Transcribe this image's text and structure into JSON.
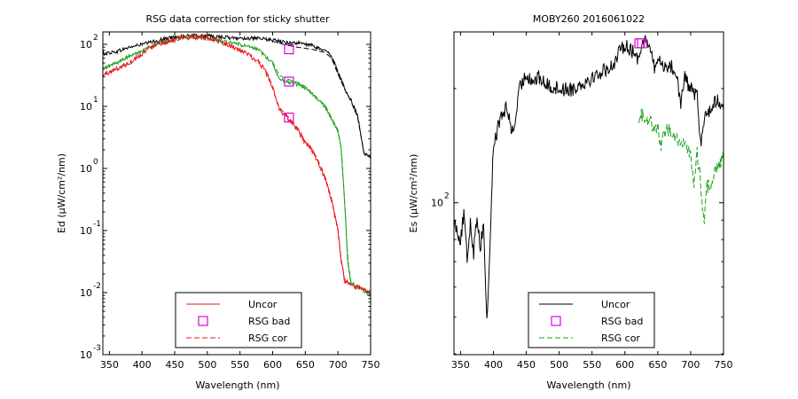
{
  "chart_data": [
    {
      "type": "line",
      "title": "RSG data correction for sticky shutter",
      "xlabel": "Wavelength (nm)",
      "ylabel": "Ed (µW/cm²/nm)",
      "xlim": [
        340,
        750
      ],
      "ylim_log10": [
        -3,
        2.2
      ],
      "y_scale": "log",
      "grid": false,
      "legend_position": "bottom-center",
      "x_ticks": [
        350,
        400,
        450,
        500,
        550,
        600,
        650,
        700,
        750
      ],
      "y_ticks": [
        {
          "base": "10",
          "exp": "2",
          "log10": 2
        },
        {
          "base": "10",
          "exp": "1",
          "log10": 1
        },
        {
          "base": "10",
          "exp": "0",
          "log10": 0
        },
        {
          "base": "10",
          "exp": "-1",
          "log10": -1
        },
        {
          "base": "10",
          "exp": "-2",
          "log10": -2
        },
        {
          "base": "10",
          "exp": "-3",
          "log10": -3
        }
      ],
      "legend": [
        {
          "label": "Uncor",
          "style": "solid",
          "color": "#e8131a"
        },
        {
          "label": "RSG bad",
          "style": "square",
          "color": "#e000e0"
        },
        {
          "label": "RSG cor",
          "style": "dashed",
          "color": "#e8131a"
        }
      ],
      "series": [
        {
          "name": "Uncor",
          "color": "#000000",
          "style": "solid",
          "noise": 0.03,
          "x": [
            340,
            360,
            380,
            400,
            420,
            440,
            460,
            480,
            500,
            520,
            540,
            560,
            580,
            600,
            620,
            640,
            660,
            680,
            690,
            700,
            710,
            720,
            730,
            740,
            750
          ],
          "log10y": [
            1.85,
            1.88,
            1.95,
            2.0,
            2.05,
            2.1,
            2.13,
            2.14,
            2.13,
            2.12,
            2.1,
            2.1,
            2.09,
            2.07,
            2.03,
            2.02,
            1.98,
            1.9,
            1.82,
            1.55,
            1.3,
            1.1,
            0.85,
            0.25,
            0.18
          ]
        },
        {
          "name": "RSG cor",
          "color": "#000000",
          "style": "dashed",
          "noise": 0.0,
          "x": [
            600,
            620,
            640,
            660,
            680,
            690,
            700,
            710,
            720,
            730,
            740,
            750
          ],
          "log10y": [
            2.05,
            1.99,
            1.95,
            1.92,
            1.87,
            1.78,
            1.52,
            1.28,
            1.08,
            0.83,
            0.24,
            0.17
          ]
        },
        {
          "name": "Uncor",
          "color": "#1aa01a",
          "style": "solid",
          "noise": 0.03,
          "x": [
            340,
            360,
            380,
            400,
            420,
            440,
            460,
            480,
            500,
            520,
            540,
            560,
            580,
            600,
            610,
            620,
            640,
            650,
            660,
            670,
            680,
            690,
            700,
            705,
            710,
            715,
            720,
            730,
            740,
            750
          ],
          "log10y": [
            1.6,
            1.7,
            1.8,
            1.9,
            2.0,
            2.05,
            2.1,
            2.12,
            2.1,
            2.05,
            2.02,
            1.97,
            1.9,
            1.7,
            1.45,
            1.4,
            1.35,
            1.3,
            1.2,
            1.1,
            1.0,
            0.8,
            0.6,
            0.3,
            -0.5,
            -1.5,
            -1.85,
            -1.9,
            -1.98,
            -2.05
          ]
        },
        {
          "name": "RSG cor",
          "color": "#1aa01a",
          "style": "dashed",
          "noise": 0.0,
          "x": [
            600,
            610,
            620,
            640,
            650,
            660,
            670,
            680,
            690,
            700,
            705,
            710,
            715,
            720
          ],
          "log10y": [
            1.72,
            1.5,
            1.45,
            1.38,
            1.32,
            1.22,
            1.12,
            1.02,
            0.82,
            0.62,
            0.32,
            -0.48,
            -1.48,
            -1.83
          ]
        },
        {
          "name": "Uncor",
          "color": "#e8131a",
          "style": "solid",
          "noise": 0.04,
          "x": [
            340,
            360,
            380,
            400,
            420,
            440,
            460,
            480,
            500,
            520,
            540,
            560,
            580,
            590,
            600,
            605,
            610,
            620,
            640,
            650,
            660,
            670,
            680,
            690,
            700,
            705,
            710,
            720,
            730,
            740,
            750
          ],
          "log10y": [
            1.5,
            1.6,
            1.7,
            1.85,
            2.0,
            2.05,
            2.1,
            2.12,
            2.1,
            2.05,
            1.95,
            1.85,
            1.7,
            1.55,
            1.3,
            1.1,
            0.95,
            0.85,
            0.6,
            0.4,
            0.3,
            0.1,
            -0.15,
            -0.5,
            -1.0,
            -1.5,
            -1.8,
            -1.9,
            -1.92,
            -1.95,
            -2.0
          ]
        },
        {
          "name": "RSG cor",
          "color": "#e8131a",
          "style": "dashed",
          "noise": 0.0,
          "x": [
            590,
            600,
            605,
            610,
            620,
            640,
            650,
            660,
            670,
            680,
            690,
            700,
            705,
            710,
            720
          ],
          "log10y": [
            1.57,
            1.32,
            1.12,
            0.98,
            0.88,
            0.63,
            0.43,
            0.32,
            0.12,
            -0.13,
            -0.48,
            -0.98,
            -1.48,
            -1.78,
            -1.88
          ]
        }
      ],
      "rsg_bad_points": [
        {
          "x": 625,
          "log10y": 1.92,
          "color": "#e000e0"
        },
        {
          "x": 625,
          "log10y": 1.4,
          "color": "#e000e0"
        },
        {
          "x": 625,
          "log10y": 0.82,
          "color": "#e000e0"
        }
      ]
    },
    {
      "type": "line",
      "title": "MOBY260  2016061022",
      "xlabel": "Wavelength (nm)",
      "ylabel": "Es (µW/cm²/nm)",
      "xlim": [
        340,
        750
      ],
      "ylim_log10": [
        1.6,
        2.45
      ],
      "y_scale": "log",
      "grid": false,
      "legend_position": "bottom-center",
      "x_ticks": [
        350,
        400,
        450,
        500,
        550,
        600,
        650,
        700,
        750
      ],
      "y_ticks": [
        {
          "base": "10",
          "exp": "2",
          "log10": 2
        }
      ],
      "legend": [
        {
          "label": "Uncor",
          "style": "solid",
          "color": "#000000"
        },
        {
          "label": "RSG bad",
          "style": "square",
          "color": "#e000e0"
        },
        {
          "label": "RSG cor",
          "style": "dashed",
          "color": "#1aa01a"
        }
      ],
      "series": [
        {
          "name": "Uncor",
          "color": "#000000",
          "style": "solid",
          "noise": 0.02,
          "x": [
            340,
            345,
            350,
            355,
            360,
            365,
            370,
            375,
            380,
            385,
            390,
            395,
            400,
            410,
            420,
            430,
            440,
            450,
            460,
            470,
            480,
            500,
            520,
            540,
            560,
            580,
            600,
            610,
            620,
            625,
            630,
            640,
            645,
            650,
            660,
            670,
            680,
            685,
            690,
            700,
            710,
            715,
            720,
            730,
            740,
            750
          ],
          "log10y": [
            1.95,
            1.93,
            1.9,
            1.97,
            1.85,
            1.95,
            1.87,
            1.97,
            1.88,
            1.95,
            1.68,
            1.9,
            2.15,
            2.22,
            2.25,
            2.18,
            2.3,
            2.34,
            2.32,
            2.33,
            2.31,
            2.3,
            2.3,
            2.32,
            2.34,
            2.36,
            2.42,
            2.4,
            2.38,
            2.42,
            2.43,
            2.4,
            2.35,
            2.38,
            2.36,
            2.36,
            2.33,
            2.25,
            2.33,
            2.3,
            2.28,
            2.15,
            2.22,
            2.25,
            2.27,
            2.26
          ]
        },
        {
          "name": "RSG cor",
          "color": "#1aa01a",
          "style": "dashed",
          "noise": 0.02,
          "x": [
            620,
            630,
            640,
            650,
            655,
            660,
            670,
            680,
            690,
            700,
            705,
            710,
            715,
            720,
            725,
            730,
            740,
            750
          ],
          "log10y": [
            2.23,
            2.23,
            2.21,
            2.2,
            2.14,
            2.19,
            2.19,
            2.17,
            2.15,
            2.13,
            2.05,
            2.13,
            2.06,
            1.94,
            2.04,
            2.05,
            2.1,
            2.12
          ]
        }
      ],
      "rsg_bad_points": [
        {
          "x": 622,
          "log10y": 2.42,
          "color": "#e000e0"
        },
        {
          "x": 626,
          "log10y": 2.42,
          "color": "#e000e0"
        }
      ]
    }
  ]
}
